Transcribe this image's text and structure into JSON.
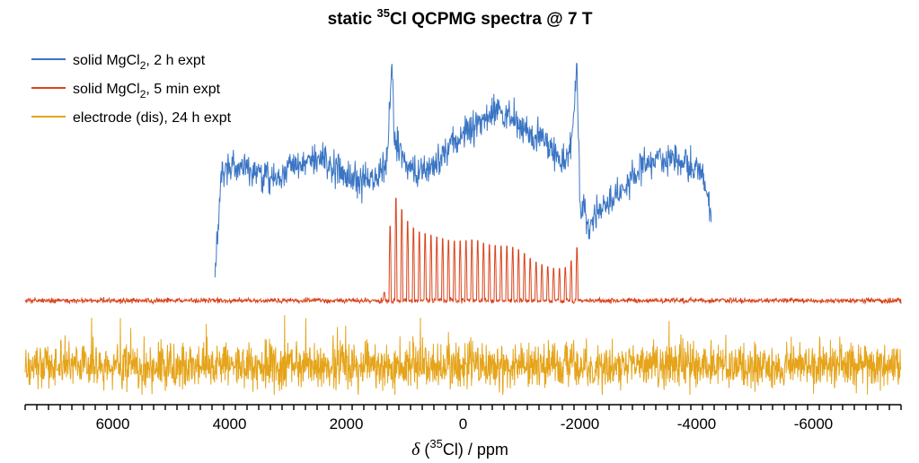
{
  "chart_data": {
    "type": "line",
    "title": "static 35Cl QCPMG spectra @ 7 T",
    "title_parts": {
      "prefix": "static ",
      "superscript": "35",
      "suffix": "Cl QCPMG spectra @ 7 T"
    },
    "xlabel": "δ (35Cl) / ppm",
    "xlabel_parts": {
      "symbol": "δ",
      "open": " (",
      "superscript": "35",
      "suffix": "Cl) / ppm"
    },
    "x_reversed": true,
    "xlim": [
      7500,
      -7500
    ],
    "xticks": [
      6000,
      4000,
      2000,
      0,
      -2000,
      -4000,
      -6000
    ],
    "xtick_labels": [
      "6000",
      "4000",
      "2000",
      "0",
      "-2000",
      "-4000",
      "-6000"
    ],
    "minor_tick_step": 200,
    "yaxis": "none (stacked, offset traces, arbitrary intensity)",
    "legend_position": "top-left",
    "series": [
      {
        "name": "solid MgCl2, 2 h expt",
        "legend_parts": {
          "prefix": "solid MgCl",
          "subscript": "2",
          "suffix": ", 2 h expt"
        },
        "color": "#3a75c4",
        "description": "broad quadrupolar powder pattern with horns",
        "x_range": [
          4250,
          -4250
        ],
        "envelope": [
          [
            4250,
            -0.3
          ],
          [
            4150,
            0.3
          ],
          [
            4000,
            0.38
          ],
          [
            3700,
            0.36
          ],
          [
            3300,
            0.3
          ],
          [
            3000,
            0.36
          ],
          [
            2700,
            0.4
          ],
          [
            2400,
            0.42
          ],
          [
            2100,
            0.36
          ],
          [
            1800,
            0.28
          ],
          [
            1500,
            0.3
          ],
          [
            1300,
            0.42
          ],
          [
            1220,
            1.0
          ],
          [
            1180,
            0.55
          ],
          [
            1000,
            0.4
          ],
          [
            700,
            0.34
          ],
          [
            400,
            0.4
          ],
          [
            200,
            0.52
          ],
          [
            -200,
            0.62
          ],
          [
            -600,
            0.72
          ],
          [
            -1000,
            0.62
          ],
          [
            -1400,
            0.52
          ],
          [
            -1700,
            0.42
          ],
          [
            -1850,
            0.48
          ],
          [
            -1950,
            0.97
          ],
          [
            -2000,
            0.18
          ],
          [
            -2150,
            0.02
          ],
          [
            -2300,
            0.1
          ],
          [
            -2600,
            0.2
          ],
          [
            -3000,
            0.36
          ],
          [
            -3400,
            0.42
          ],
          [
            -3800,
            0.4
          ],
          [
            -4100,
            0.34
          ],
          [
            -4250,
            0.08
          ]
        ]
      },
      {
        "name": "solid MgCl2, 5 min expt",
        "legend_parts": {
          "prefix": "solid MgCl",
          "subscript": "2",
          "suffix": ", 5 min expt"
        },
        "color": "#d9441c",
        "description": "QCPMG spikelet manifold",
        "spikelet_range": [
          1350,
          -1950
        ],
        "spikelet_spacing": 100,
        "envelope": [
          [
            1350,
            0.05
          ],
          [
            1300,
            0.1
          ],
          [
            1250,
            0.45
          ],
          [
            1220,
            1.0
          ],
          [
            1150,
            0.62
          ],
          [
            1050,
            0.55
          ],
          [
            950,
            0.48
          ],
          [
            800,
            0.42
          ],
          [
            600,
            0.4
          ],
          [
            400,
            0.38
          ],
          [
            200,
            0.36
          ],
          [
            0,
            0.36
          ],
          [
            -200,
            0.37
          ],
          [
            -400,
            0.34
          ],
          [
            -600,
            0.33
          ],
          [
            -800,
            0.33
          ],
          [
            -1000,
            0.3
          ],
          [
            -1200,
            0.24
          ],
          [
            -1400,
            0.21
          ],
          [
            -1600,
            0.19
          ],
          [
            -1750,
            0.2
          ],
          [
            -1850,
            0.24
          ],
          [
            -1950,
            0.32
          ]
        ]
      },
      {
        "name": "electrode (dis), 24 h expt",
        "color": "#e5a41a",
        "description": "noise only, no discernible signal"
      }
    ]
  }
}
